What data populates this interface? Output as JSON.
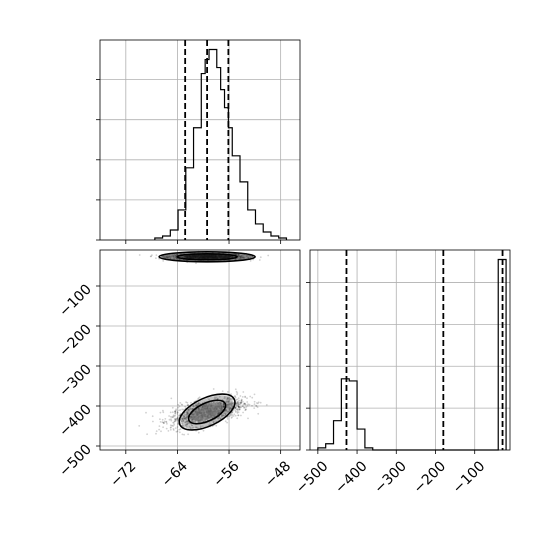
{
  "chart_data": [
    {
      "type": "histogram",
      "panel": "top-left",
      "xlim": [
        -76,
        -45
      ],
      "bins": [
        -67.5,
        -66.3,
        -65.1,
        -63.9,
        -62.7,
        -61.5,
        -60.3,
        -59.7,
        -59.1,
        -58.5,
        -57.9,
        -57.3,
        -56.7,
        -56.1,
        -55.5,
        -54.3,
        -53.1,
        -51.9,
        -50.7,
        -49.5,
        -48.3,
        -47.1
      ],
      "counts": [
        1,
        2,
        5,
        15,
        36,
        56,
        83,
        90,
        95,
        95,
        86,
        75,
        66,
        56,
        42,
        29,
        15,
        8,
        4,
        2,
        1
      ],
      "quantiles": [
        -62.8,
        -59.4,
        -56.1
      ],
      "xticks": [
        -72,
        -64,
        -56,
        -48
      ],
      "grid": true
    },
    {
      "type": "scatter-density",
      "panel": "bottom-left",
      "xlim": [
        -76,
        -45
      ],
      "ylim": [
        -510,
        -10
      ],
      "xticks": [
        -72,
        -64,
        -56,
        -48
      ],
      "yticks": [
        -100,
        -200,
        -300,
        -400,
        -500
      ],
      "xtick_labels": [
        "−72",
        "−64",
        "−56",
        "−48"
      ],
      "ytick_labels": [
        "−100",
        "−200",
        "−300",
        "−400",
        "−500"
      ],
      "clusters": [
        {
          "x_mean": -59.4,
          "x_sd": 3.0,
          "y_mean": -27,
          "y_sd": 4,
          "n": 900
        },
        {
          "x_mean": -59.4,
          "x_sd": 2.8,
          "y_mean": -415,
          "y_sd": 18,
          "rho": 0.55,
          "n": 1400
        }
      ],
      "grid": true
    },
    {
      "type": "histogram",
      "panel": "bottom-right",
      "xlim": [
        -520,
        -10
      ],
      "bins": [
        -500,
        -480,
        -460,
        -440,
        -420,
        -400,
        -380,
        -360,
        -340,
        -320,
        -300,
        -280,
        -260,
        -240,
        -220,
        -200,
        -180,
        -160,
        -140,
        -120,
        -100,
        -80,
        -60,
        -40,
        -20
      ],
      "counts": [
        1,
        3,
        14,
        34,
        33,
        10,
        1,
        0,
        0,
        0,
        0,
        0,
        0,
        0,
        0,
        0,
        0,
        0,
        0,
        0,
        0,
        0,
        0,
        91
      ],
      "quantiles": [
        -427,
        -180,
        -29
      ],
      "xticks": [
        -500,
        -400,
        -300,
        -200,
        -100
      ],
      "xtick_labels": [
        "−500",
        "−400",
        "−300",
        "−200",
        "−100"
      ],
      "grid": true
    }
  ]
}
